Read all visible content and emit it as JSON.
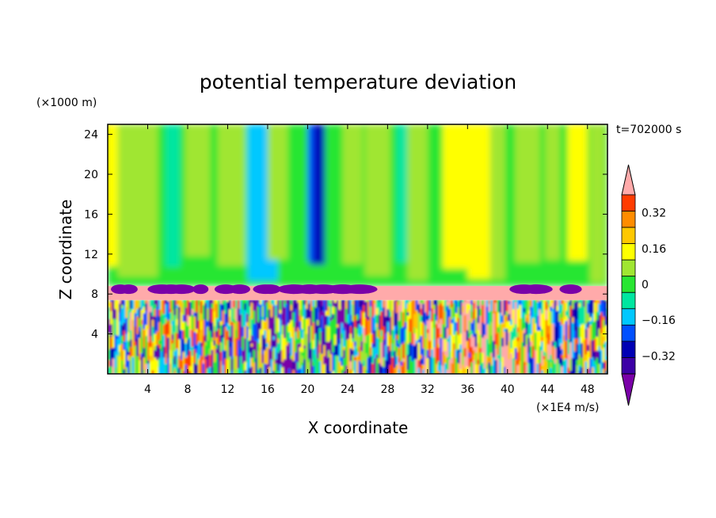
{
  "chart_data": {
    "type": "heatmap",
    "title": "potential temperature deviation",
    "xlabel": "X coordinate",
    "ylabel": "Z coordinate",
    "x_unit": "(×1E4 m/s)",
    "y_unit": "(×1000 m)",
    "time_label": "t=702000 s",
    "x_range": [
      0,
      50
    ],
    "y_range": [
      0,
      25
    ],
    "x_ticks": [
      4,
      8,
      12,
      16,
      20,
      24,
      28,
      32,
      36,
      40,
      44,
      48
    ],
    "y_ticks": [
      4,
      8,
      12,
      16,
      20,
      24
    ],
    "colorbar": {
      "levels": [
        -0.48,
        -0.4,
        -0.32,
        -0.24,
        -0.16,
        -0.08,
        0,
        0.08,
        0.16,
        0.24,
        0.32,
        0.4,
        0.48
      ],
      "tick_labels": [
        "0.32",
        "0.16",
        "0",
        "−0.16",
        "−0.32"
      ],
      "tick_values": [
        0.32,
        0.16,
        0,
        -0.16,
        -0.32
      ],
      "colors": [
        "#7a00a8",
        "#3c00a6",
        "#0000b4",
        "#0050ff",
        "#00c8ff",
        "#00e6a0",
        "#28e632",
        "#a0e632",
        "#ffff00",
        "#ffc800",
        "#ff8c00",
        "#ff3c00",
        "#ffaaaa"
      ],
      "extend": "both"
    },
    "layers": [
      {
        "name": "upper",
        "z": [
          8.8,
          25
        ],
        "description_values": [
          -0.2,
          0.2
        ]
      },
      {
        "name": "band",
        "z": [
          7.4,
          8.8
        ],
        "value": 0.45
      },
      {
        "name": "lower",
        "z": [
          0,
          7.4
        ],
        "description_values": [
          -0.48,
          0.48
        ]
      }
    ]
  }
}
